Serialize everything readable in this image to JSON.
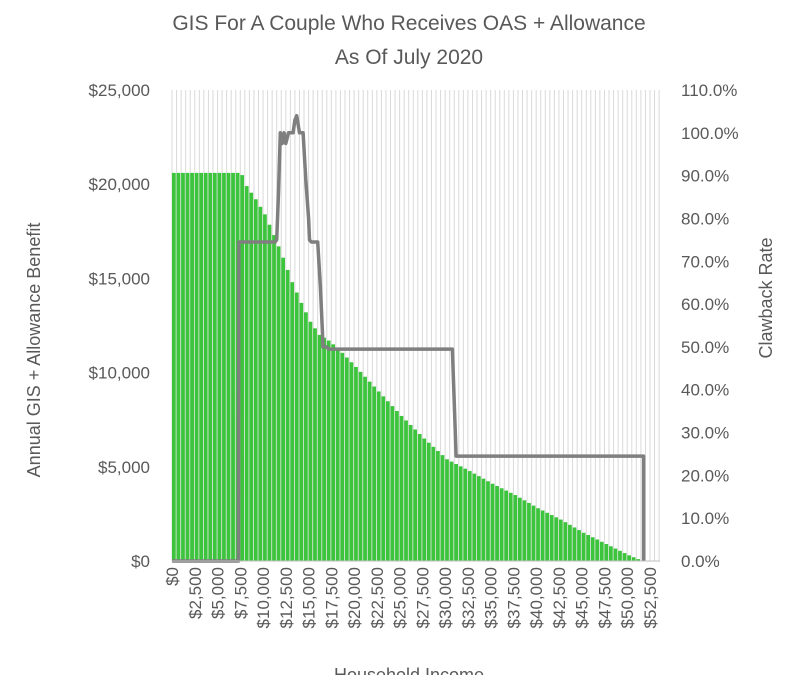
{
  "chart_data": {
    "type": "bar",
    "title": "GIS For A Couple Who Receives OAS + Allowance",
    "subtitle": "As Of July 2020",
    "xlabel": "Household Income",
    "ylabel": "Annual GIS + Allowance Benefit",
    "y2label": "Clawback Rate",
    "xlim": [
      0,
      53600
    ],
    "ylim": [
      0,
      25000
    ],
    "y2lim": [
      0,
      1.1
    ],
    "x_ticks": [
      "$0",
      "$2,500",
      "$5,000",
      "$7,500",
      "$10,000",
      "$12,500",
      "$15,000",
      "$17,500",
      "$20,000",
      "$22,500",
      "$25,000",
      "$27,500",
      "$30,000",
      "$32,500",
      "$35,000",
      "$37,500",
      "$40,000",
      "$42,500",
      "$45,000",
      "$47,500",
      "$50,000",
      "$52,500"
    ],
    "y_ticks": [
      "$0",
      "$5,000",
      "$10,000",
      "$15,000",
      "$20,000",
      "$25,000"
    ],
    "y2_ticks": [
      "0.0%",
      "10.0%",
      "20.0%",
      "30.0%",
      "40.0%",
      "50.0%",
      "60.0%",
      "70.0%",
      "80.0%",
      "90.0%",
      "100.0%",
      "110.0%"
    ],
    "grid": true,
    "series": [
      {
        "name": "",
        "kind": "bar",
        "color": "#3cc43c",
        "axis": "left",
        "x": [
          0,
          7400,
          8000,
          9000,
          10000,
          11000,
          12000,
          13000,
          14000,
          15000,
          16000,
          17000,
          18000,
          20000,
          22500,
          25000,
          27500,
          30000,
          32000,
          32400,
          35000,
          37500,
          40000,
          42500,
          45000,
          47500,
          50000,
          51500,
          51800
        ],
        "values": [
          20600,
          20600,
          19900,
          19200,
          18400,
          17300,
          16100,
          14800,
          13700,
          12700,
          12000,
          11700,
          11300,
          10300,
          9000,
          7700,
          6500,
          5400,
          4900,
          4800,
          4100,
          3500,
          2800,
          2200,
          1500,
          900,
          300,
          0,
          0
        ]
      },
      {
        "name": "",
        "kind": "line",
        "color": "#7f7f7f",
        "axis": "right",
        "x": [
          0,
          7300,
          7350,
          7450,
          11300,
          11500,
          11700,
          11900,
          12100,
          12300,
          12500,
          12800,
          13300,
          13500,
          13700,
          14000,
          14400,
          14700,
          15000,
          15100,
          15300,
          15600,
          16000,
          16300,
          16600,
          17000,
          17200,
          17600,
          30500,
          30800,
          31200,
          32400,
          51800,
          51800
        ],
        "values": [
          0.0,
          0.0,
          0.745,
          0.745,
          0.745,
          0.75,
          0.86,
          1.0,
          0.975,
          1.0,
          0.975,
          1.0,
          1.0,
          1.03,
          1.04,
          1.0,
          1.0,
          0.89,
          0.8,
          0.75,
          0.745,
          0.745,
          0.745,
          0.64,
          0.5,
          0.5,
          0.495,
          0.495,
          0.495,
          0.495,
          0.245,
          0.245,
          0.245,
          0.0
        ]
      }
    ]
  }
}
